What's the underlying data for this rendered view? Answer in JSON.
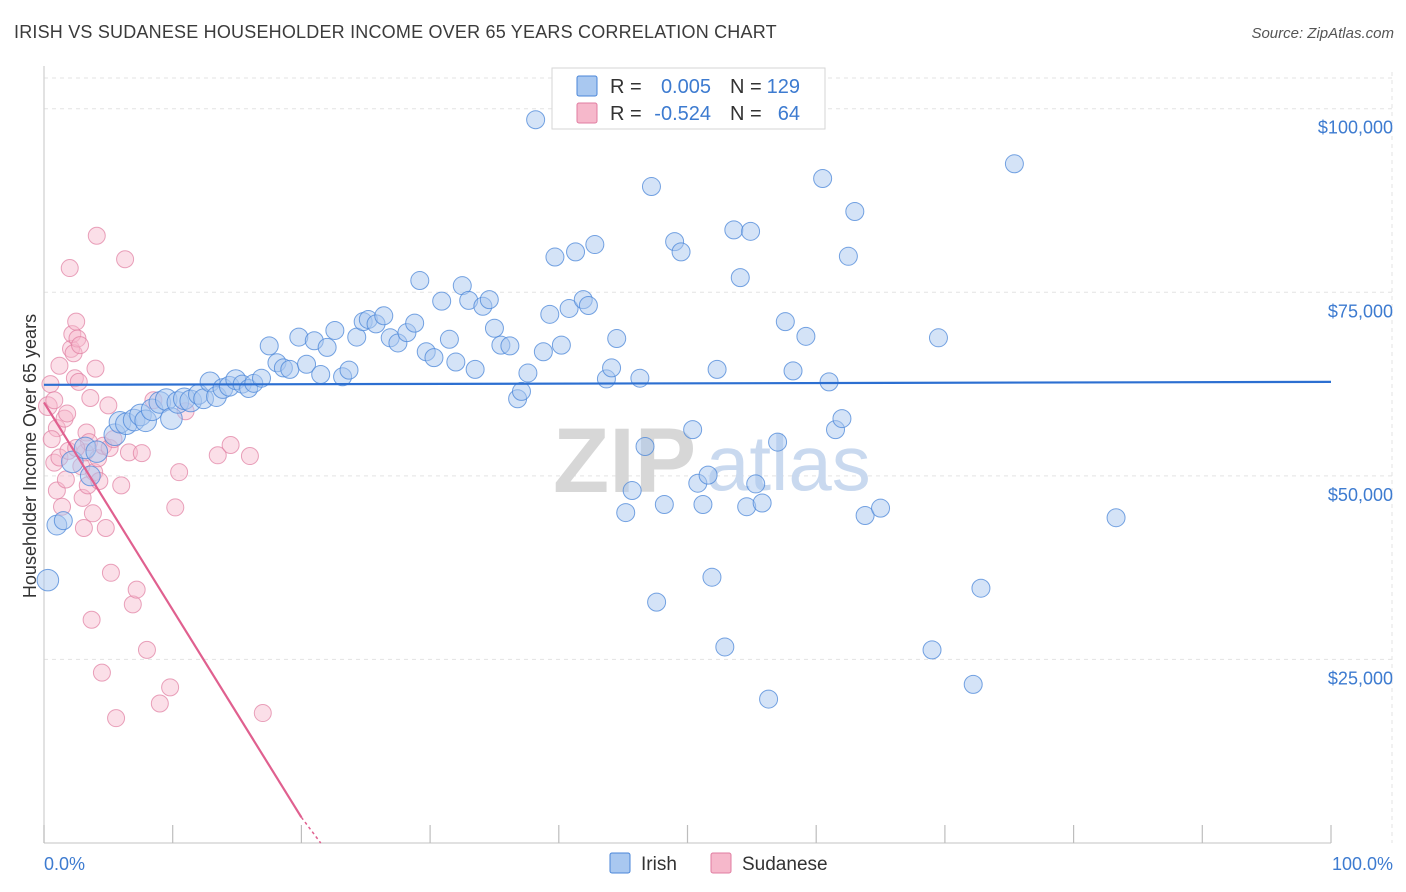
{
  "title": "IRISH VS SUDANESE HOUSEHOLDER INCOME OVER 65 YEARS CORRELATION CHART",
  "source": "Source: ZipAtlas.com",
  "colors": {
    "irish_fill": "#a9c8f0",
    "irish_stroke": "#4a86d8",
    "irish_line": "#2c6fd1",
    "sudanese_fill": "#f6b8cb",
    "sudanese_stroke": "#e07ca0",
    "sudanese_line": "#e0608f",
    "tick_label": "#3d7bd0",
    "grid": "#e3e3e3"
  },
  "legend": {
    "r_label": "R =",
    "n_label": "N =",
    "irish_r": "0.005",
    "irish_n": "129",
    "sudanese_r": "-0.524",
    "sudanese_n": "64"
  },
  "watermark": {
    "zip": "ZIP",
    "atlas": "atlas"
  },
  "chart_data": {
    "type": "scatter",
    "title": "IRISH VS SUDANESE HOUSEHOLDER INCOME OVER 65 YEARS CORRELATION CHART",
    "xlabel": "",
    "ylabel": "Householder Income Over 65 years",
    "xlim": [
      0,
      100
    ],
    "ylim": [
      0,
      105000
    ],
    "x_tick_labels": [
      "0.0%",
      "100.0%"
    ],
    "y_ticks": [
      25000,
      50000,
      75000,
      100000
    ],
    "y_tick_labels": [
      "$25,000",
      "$50,000",
      "$75,000",
      "$100,000"
    ],
    "legend_position": "bottom-center",
    "grid": true,
    "series": [
      {
        "name": "Irish",
        "r": 0.005,
        "n": 129,
        "trend": {
          "x": [
            0,
            100
          ],
          "y": [
            62400,
            62800
          ]
        },
        "points": [
          [
            0.3,
            35800,
            12
          ],
          [
            1.0,
            43300,
            11
          ],
          [
            1.5,
            43900,
            10
          ],
          [
            2.2,
            51900,
            12
          ],
          [
            3.2,
            53800,
            12
          ],
          [
            3.6,
            50000,
            11
          ],
          [
            4.1,
            53300,
            12
          ],
          [
            5.5,
            55600,
            12
          ],
          [
            5.9,
            57300,
            12
          ],
          [
            6.4,
            57100,
            12
          ],
          [
            7.0,
            57600,
            12
          ],
          [
            7.5,
            58300,
            12
          ],
          [
            7.9,
            57500,
            12
          ],
          [
            8.4,
            59000,
            12
          ],
          [
            9.0,
            60000,
            12
          ],
          [
            9.5,
            60400,
            12
          ],
          [
            9.9,
            57800,
            12
          ],
          [
            10.4,
            60000,
            12
          ],
          [
            10.9,
            60500,
            12
          ],
          [
            11.4,
            60200,
            12
          ],
          [
            12.0,
            61100,
            11
          ],
          [
            12.4,
            60500,
            11
          ],
          [
            12.9,
            62800,
            11
          ],
          [
            13.4,
            60800,
            11
          ],
          [
            13.9,
            61900,
            11
          ],
          [
            14.4,
            62200,
            11
          ],
          [
            14.9,
            63100,
            11
          ],
          [
            15.4,
            62500,
            10
          ],
          [
            15.9,
            61900,
            10
          ],
          [
            16.3,
            62600,
            10
          ],
          [
            16.9,
            63300,
            10
          ],
          [
            17.5,
            67700,
            10
          ],
          [
            18.1,
            65400,
            10
          ],
          [
            18.6,
            64700,
            10
          ],
          [
            19.1,
            64500,
            10
          ],
          [
            19.8,
            68900,
            10
          ],
          [
            20.4,
            65200,
            10
          ],
          [
            21.0,
            68400,
            10
          ],
          [
            21.5,
            63800,
            10
          ],
          [
            22.0,
            67500,
            10
          ],
          [
            22.6,
            69800,
            10
          ],
          [
            23.2,
            63500,
            10
          ],
          [
            23.7,
            64400,
            10
          ],
          [
            24.3,
            68900,
            10
          ],
          [
            24.8,
            71000,
            10
          ],
          [
            25.2,
            71300,
            10
          ],
          [
            25.8,
            70700,
            10
          ],
          [
            26.4,
            71800,
            10
          ],
          [
            26.9,
            68800,
            10
          ],
          [
            27.5,
            68100,
            10
          ],
          [
            28.2,
            69500,
            10
          ],
          [
            28.8,
            70800,
            10
          ],
          [
            29.2,
            76600,
            10
          ],
          [
            29.7,
            66900,
            10
          ],
          [
            30.3,
            66100,
            10
          ],
          [
            30.9,
            73800,
            10
          ],
          [
            31.5,
            68600,
            10
          ],
          [
            32.0,
            65500,
            10
          ],
          [
            32.5,
            75900,
            10
          ],
          [
            33.0,
            73900,
            10
          ],
          [
            33.5,
            64500,
            10
          ],
          [
            34.1,
            73100,
            10
          ],
          [
            34.6,
            74000,
            10
          ],
          [
            35.0,
            70100,
            10
          ],
          [
            35.5,
            67800,
            10
          ],
          [
            36.2,
            67700,
            10
          ],
          [
            36.8,
            60500,
            10
          ],
          [
            37.1,
            61500,
            10
          ],
          [
            37.6,
            64000,
            10
          ],
          [
            38.2,
            98500,
            10
          ],
          [
            38.8,
            66900,
            10
          ],
          [
            39.3,
            72000,
            10
          ],
          [
            39.7,
            79800,
            10
          ],
          [
            40.2,
            67800,
            10
          ],
          [
            40.8,
            72800,
            10
          ],
          [
            41.3,
            80500,
            10
          ],
          [
            41.9,
            74000,
            10
          ],
          [
            42.3,
            73200,
            10
          ],
          [
            42.8,
            81500,
            10
          ],
          [
            43.7,
            63200,
            10
          ],
          [
            44.1,
            64700,
            10
          ],
          [
            44.5,
            68700,
            10
          ],
          [
            45.2,
            45000,
            10
          ],
          [
            45.7,
            48000,
            10
          ],
          [
            46.3,
            63300,
            10
          ],
          [
            46.7,
            54000,
            10
          ],
          [
            47.2,
            89400,
            10
          ],
          [
            47.6,
            32800,
            10
          ],
          [
            48.2,
            46100,
            10
          ],
          [
            49.0,
            81900,
            10
          ],
          [
            49.5,
            80500,
            10
          ],
          [
            50.4,
            56300,
            10
          ],
          [
            50.8,
            49000,
            10
          ],
          [
            51.2,
            46100,
            10
          ],
          [
            51.6,
            50100,
            10
          ],
          [
            51.9,
            36200,
            10
          ],
          [
            52.3,
            64500,
            10
          ],
          [
            52.9,
            26700,
            10
          ],
          [
            53.6,
            83500,
            10
          ],
          [
            54.1,
            77000,
            10
          ],
          [
            54.6,
            45800,
            10
          ],
          [
            54.9,
            83300,
            10
          ],
          [
            55.3,
            48900,
            10
          ],
          [
            55.8,
            46300,
            10
          ],
          [
            56.3,
            19600,
            10
          ],
          [
            57.0,
            54600,
            10
          ],
          [
            57.6,
            71000,
            10
          ],
          [
            58.2,
            64300,
            10
          ],
          [
            59.2,
            69000,
            10
          ],
          [
            60.5,
            90500,
            10
          ],
          [
            61.0,
            62800,
            10
          ],
          [
            61.5,
            56300,
            10
          ],
          [
            62.0,
            57800,
            10
          ],
          [
            62.5,
            79900,
            10
          ],
          [
            63.0,
            86000,
            10
          ],
          [
            63.8,
            44600,
            10
          ],
          [
            65.0,
            45600,
            10
          ],
          [
            69.0,
            26300,
            10
          ],
          [
            69.5,
            68800,
            10
          ],
          [
            72.2,
            21600,
            10
          ],
          [
            72.8,
            34700,
            10
          ],
          [
            75.4,
            92500,
            10
          ],
          [
            83.3,
            44300,
            10
          ]
        ]
      },
      {
        "name": "Sudanese",
        "r": -0.524,
        "n": 64,
        "trend": {
          "x": [
            0,
            20,
            21.5
          ],
          "y": [
            60000,
            3500,
            0
          ]
        },
        "points": [
          [
            0.3,
            59500,
            11
          ],
          [
            0.5,
            62500,
            10
          ],
          [
            0.8,
            60300,
            10
          ],
          [
            1.0,
            56500,
            10
          ],
          [
            1.2,
            65000,
            10
          ],
          [
            0.6,
            55000,
            10
          ],
          [
            0.8,
            51800,
            10
          ],
          [
            1.0,
            48000,
            10
          ],
          [
            1.2,
            52500,
            10
          ],
          [
            1.4,
            45800,
            10
          ],
          [
            1.6,
            57800,
            10
          ],
          [
            1.7,
            49500,
            10
          ],
          [
            1.9,
            53400,
            10
          ],
          [
            2.0,
            78300,
            10
          ],
          [
            2.1,
            67300,
            10
          ],
          [
            2.2,
            69300,
            10
          ],
          [
            2.3,
            66700,
            10
          ],
          [
            2.4,
            63300,
            10
          ],
          [
            2.5,
            71000,
            10
          ],
          [
            2.6,
            68700,
            10
          ],
          [
            2.7,
            62800,
            10
          ],
          [
            2.8,
            67800,
            10
          ],
          [
            2.9,
            51300,
            10
          ],
          [
            3.0,
            47000,
            10
          ],
          [
            3.1,
            42900,
            10
          ],
          [
            3.2,
            53200,
            10
          ],
          [
            3.3,
            55900,
            10
          ],
          [
            3.4,
            48700,
            10
          ],
          [
            3.5,
            54600,
            10
          ],
          [
            3.6,
            60600,
            10
          ],
          [
            3.7,
            30400,
            10
          ],
          [
            3.8,
            44900,
            10
          ],
          [
            3.9,
            50500,
            10
          ],
          [
            4.0,
            64600,
            10
          ],
          [
            4.1,
            82700,
            10
          ],
          [
            4.2,
            52400,
            10
          ],
          [
            4.3,
            49300,
            10
          ],
          [
            4.5,
            23200,
            10
          ],
          [
            4.6,
            54100,
            10
          ],
          [
            4.8,
            42900,
            10
          ],
          [
            5.0,
            59600,
            10
          ],
          [
            5.1,
            53800,
            10
          ],
          [
            5.2,
            36800,
            10
          ],
          [
            5.4,
            55000,
            10
          ],
          [
            5.6,
            17000,
            10
          ],
          [
            6.0,
            48700,
            10
          ],
          [
            6.3,
            79500,
            10
          ],
          [
            6.6,
            53200,
            10
          ],
          [
            6.9,
            32500,
            10
          ],
          [
            7.2,
            34500,
            10
          ],
          [
            7.6,
            53100,
            10
          ],
          [
            8.0,
            26300,
            10
          ],
          [
            8.5,
            60300,
            10
          ],
          [
            9.0,
            19000,
            10
          ],
          [
            9.8,
            21200,
            10
          ],
          [
            10.2,
            45700,
            10
          ],
          [
            10.5,
            50500,
            10
          ],
          [
            11.0,
            58800,
            10
          ],
          [
            13.5,
            52800,
            10
          ],
          [
            14.5,
            54200,
            10
          ],
          [
            16.0,
            52700,
            10
          ],
          [
            17.0,
            17700,
            10
          ],
          [
            1.8,
            58500,
            10
          ],
          [
            2.5,
            53800,
            10
          ]
        ]
      }
    ]
  }
}
